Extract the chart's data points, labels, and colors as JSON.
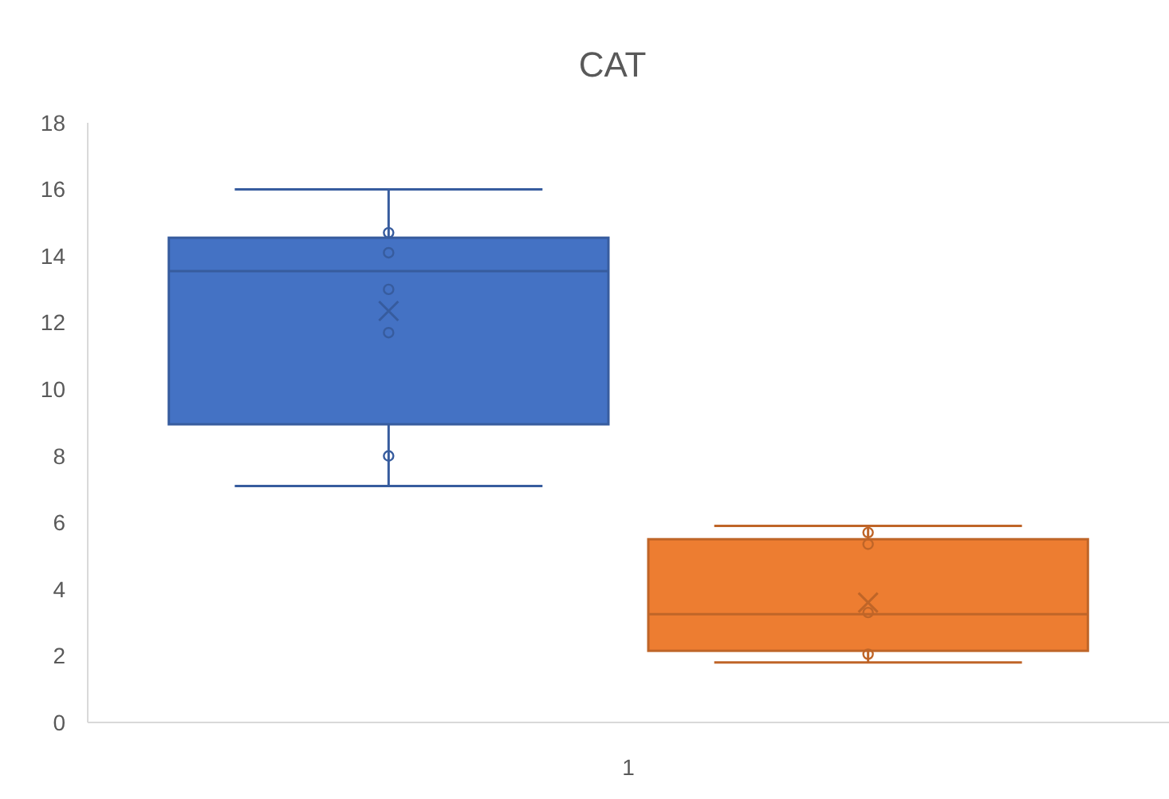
{
  "chart_data": {
    "type": "box",
    "title": "CAT",
    "categories": [
      "1"
    ],
    "ylim": [
      0,
      18
    ],
    "yticks": [
      0,
      2,
      4,
      6,
      8,
      10,
      12,
      14,
      16,
      18
    ],
    "grid": false,
    "series": [
      {
        "color": "#4472c4",
        "boxes": [
          {
            "low": 7.1,
            "q1": 8.95,
            "median": 13.55,
            "q3": 14.55,
            "high": 16,
            "mean": 12.35,
            "outliers": [
              14.7,
              14.1,
              13,
              11.7,
              8
            ]
          }
        ]
      },
      {
        "color": "#ed7d31",
        "boxes": [
          {
            "low": 1.8,
            "q1": 2.15,
            "median": 3.25,
            "q3": 5.5,
            "high": 5.9,
            "mean": 3.6,
            "outliers": [
              5.7,
              5.35,
              3.3,
              2.05
            ]
          }
        ]
      }
    ]
  }
}
